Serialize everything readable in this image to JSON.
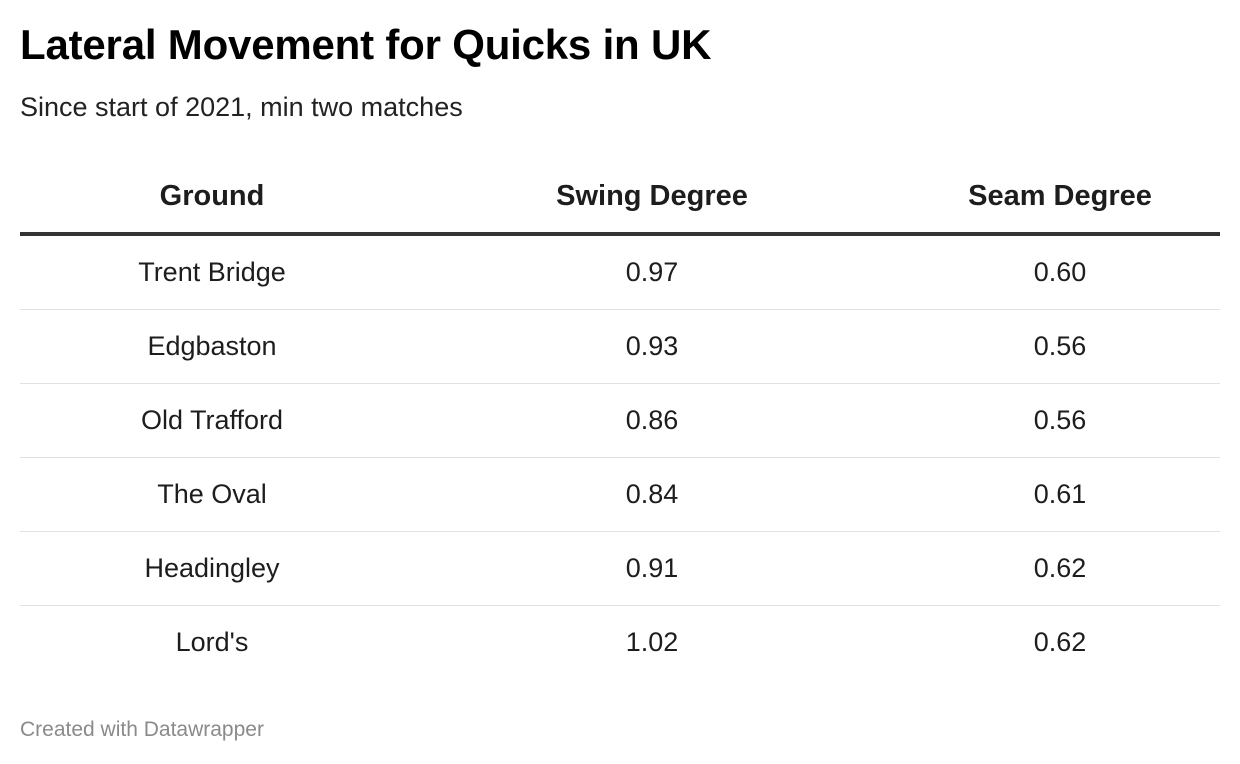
{
  "chart_data": {
    "type": "table",
    "title": "Lateral Movement for Quicks in UK",
    "subtitle": "Since start of 2021, min two matches",
    "columns": [
      "Ground",
      "Swing Degree",
      "Seam Degree"
    ],
    "rows": [
      [
        "Trent Bridge",
        "0.97",
        "0.60"
      ],
      [
        "Edgbaston",
        "0.93",
        "0.56"
      ],
      [
        "Old Trafford",
        "0.86",
        "0.56"
      ],
      [
        "The Oval",
        "0.84",
        "0.61"
      ],
      [
        "Headingley",
        "0.91",
        "0.62"
      ],
      [
        "Lord's",
        "1.02",
        "0.62"
      ]
    ]
  },
  "footer": {
    "credit": "Created with Datawrapper"
  }
}
